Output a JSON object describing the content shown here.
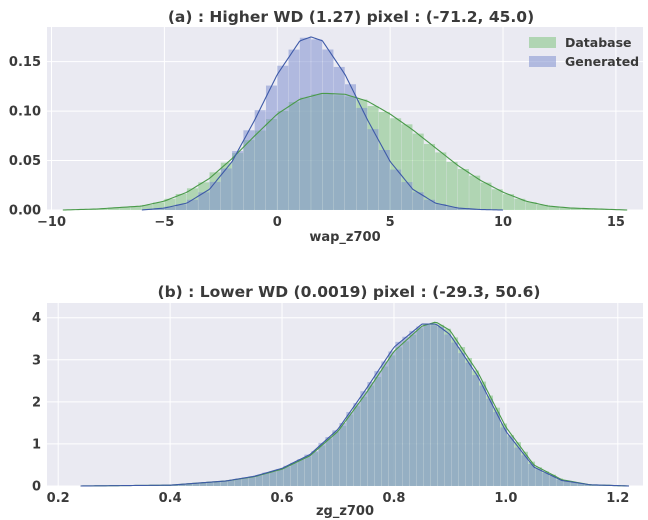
{
  "chart_data": [
    {
      "type": "histogram",
      "title": "(a) : Higher WD (1.27) pixel : (-71.2, 45.0)",
      "xlabel": "wap_z700",
      "ylabel": "",
      "xlim": [
        -10.2,
        16.2
      ],
      "ylim": [
        0,
        0.185
      ],
      "xticks": [
        -10,
        -5,
        0,
        5,
        10,
        15
      ],
      "xtick_labels": [
        "−10",
        "−5",
        "0",
        "5",
        "10",
        "15"
      ],
      "yticks": [
        0,
        0.05,
        0.1,
        0.15
      ],
      "ytick_labels": [
        "0.00",
        "0.05",
        "0.10",
        "0.15"
      ],
      "grid": true,
      "legend": "top-right",
      "bin_width": 0.5,
      "series": [
        {
          "name": "Database",
          "color": "#7fc27f",
          "line_color": "#4a9a4a",
          "distribution": "skew-normal",
          "mean": 2.5,
          "std": 3.3,
          "skew": 0.7,
          "x": [
            -9.5,
            -8,
            -6,
            -5,
            -4,
            -3,
            -2,
            -1,
            0,
            1,
            2,
            3,
            4,
            5,
            6,
            7,
            8,
            9,
            10,
            11,
            12,
            13,
            15.5
          ],
          "y": [
            0.0,
            0.001,
            0.004,
            0.009,
            0.018,
            0.032,
            0.052,
            0.075,
            0.097,
            0.112,
            0.118,
            0.117,
            0.11,
            0.097,
            0.081,
            0.063,
            0.045,
            0.03,
            0.018,
            0.009,
            0.004,
            0.002,
            0.0
          ]
        },
        {
          "name": "Generated",
          "color": "#7f8fd0",
          "line_color": "#3e5aa8",
          "distribution": "normal",
          "mean": 1.5,
          "std": 2.3,
          "x": [
            -6,
            -5,
            -4,
            -3,
            -2,
            -1,
            0,
            1,
            1.5,
            2,
            3,
            4,
            5,
            6,
            7,
            8,
            9,
            10
          ],
          "y": [
            0.0,
            0.002,
            0.007,
            0.021,
            0.049,
            0.091,
            0.137,
            0.171,
            0.175,
            0.171,
            0.137,
            0.091,
            0.049,
            0.021,
            0.007,
            0.002,
            0.0005,
            0.0
          ]
        }
      ]
    },
    {
      "type": "histogram",
      "title": "(b) : Lower WD (0.0019) pixel : (-29.3, 50.6)",
      "xlabel": "zg_z700",
      "ylabel": "",
      "xlim": [
        0.18,
        1.245
      ],
      "ylim": [
        0,
        4.35
      ],
      "xticks": [
        0.2,
        0.4,
        0.6,
        0.8,
        1.0,
        1.2
      ],
      "xtick_labels": [
        "0.2",
        "0.4",
        "0.6",
        "0.8",
        "1.0",
        "1.2"
      ],
      "yticks": [
        0,
        1,
        2,
        3,
        4
      ],
      "ytick_labels": [
        "0",
        "1",
        "2",
        "3",
        "4"
      ],
      "grid": true,
      "bin_width": 0.0125,
      "series": [
        {
          "name": "Database",
          "color": "#7fc27f",
          "line_color": "#4a9a4a",
          "distribution": "skew-normal",
          "mean": 0.855,
          "std": 0.105,
          "skew": -1.2,
          "x": [
            0.24,
            0.4,
            0.5,
            0.55,
            0.6,
            0.65,
            0.7,
            0.75,
            0.8,
            0.85,
            0.875,
            0.9,
            0.95,
            1.0,
            1.05,
            1.1,
            1.15,
            1.22
          ],
          "y": [
            0.0,
            0.02,
            0.12,
            0.22,
            0.4,
            0.72,
            1.3,
            2.2,
            3.2,
            3.8,
            3.9,
            3.7,
            2.7,
            1.4,
            0.5,
            0.15,
            0.03,
            0.0
          ]
        },
        {
          "name": "Generated",
          "color": "#7f8fd0",
          "line_color": "#3e5aa8",
          "distribution": "skew-normal",
          "mean": 0.852,
          "std": 0.105,
          "skew": -1.2,
          "x": [
            0.24,
            0.4,
            0.5,
            0.55,
            0.6,
            0.65,
            0.7,
            0.75,
            0.8,
            0.85,
            0.875,
            0.9,
            0.95,
            1.0,
            1.05,
            1.1,
            1.15,
            1.22
          ],
          "y": [
            0.0,
            0.02,
            0.12,
            0.23,
            0.42,
            0.75,
            1.35,
            2.3,
            3.3,
            3.85,
            3.85,
            3.6,
            2.6,
            1.3,
            0.45,
            0.13,
            0.03,
            0.0
          ]
        }
      ]
    }
  ],
  "colors": {
    "axes_bg": "#eaeaf2",
    "grid": "#ffffff",
    "text": "#3a3a3a"
  }
}
